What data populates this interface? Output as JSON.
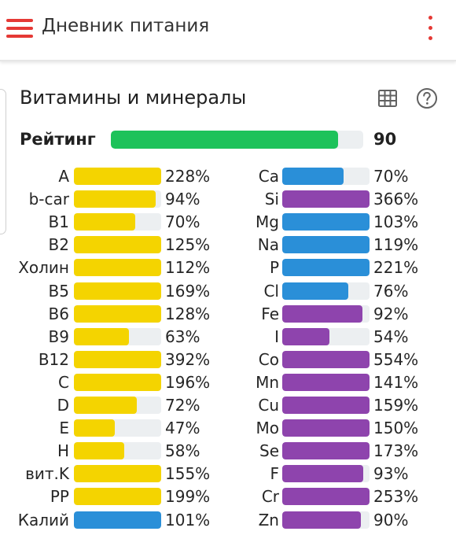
{
  "appbar": {
    "title": "Дневник питания",
    "menu_icon": "menu-icon",
    "more_icon": "more-vert-icon",
    "accent_color": "#e53935"
  },
  "section": {
    "title": "Витамины и минералы",
    "table_icon": "table-icon",
    "help_icon": "help-icon"
  },
  "rating": {
    "label": "Рейтинг",
    "value": "90",
    "fill_percent": 90,
    "color": "#1dc25a"
  },
  "colors": {
    "vitamin": "#f4d400",
    "blue": "#2a8fd8",
    "purple": "#8e44ad",
    "track": "#eceff1"
  },
  "vitamins": [
    {
      "name": "A",
      "percent": "228%",
      "color": "#f4d400"
    },
    {
      "name": "b-car",
      "percent": "94%",
      "color": "#f4d400"
    },
    {
      "name": "B1",
      "percent": "70%",
      "color": "#f4d400"
    },
    {
      "name": "B2",
      "percent": "125%",
      "color": "#f4d400"
    },
    {
      "name": "Холин",
      "percent": "112%",
      "color": "#f4d400"
    },
    {
      "name": "B5",
      "percent": "169%",
      "color": "#f4d400"
    },
    {
      "name": "B6",
      "percent": "128%",
      "color": "#f4d400"
    },
    {
      "name": "B9",
      "percent": "63%",
      "color": "#f4d400"
    },
    {
      "name": "B12",
      "percent": "392%",
      "color": "#f4d400"
    },
    {
      "name": "C",
      "percent": "196%",
      "color": "#f4d400"
    },
    {
      "name": "D",
      "percent": "72%",
      "color": "#f4d400"
    },
    {
      "name": "E",
      "percent": "47%",
      "color": "#f4d400"
    },
    {
      "name": "H",
      "percent": "58%",
      "color": "#f4d400"
    },
    {
      "name": "вит.K",
      "percent": "155%",
      "color": "#f4d400"
    },
    {
      "name": "PP",
      "percent": "199%",
      "color": "#f4d400"
    },
    {
      "name": "Калий",
      "percent": "101%",
      "color": "#2a8fd8"
    }
  ],
  "minerals": [
    {
      "name": "Ca",
      "percent": "70%",
      "color": "#2a8fd8"
    },
    {
      "name": "Si",
      "percent": "366%",
      "color": "#8e44ad"
    },
    {
      "name": "Mg",
      "percent": "103%",
      "color": "#2a8fd8"
    },
    {
      "name": "Na",
      "percent": "119%",
      "color": "#2a8fd8"
    },
    {
      "name": "P",
      "percent": "221%",
      "color": "#2a8fd8"
    },
    {
      "name": "Cl",
      "percent": "76%",
      "color": "#2a8fd8"
    },
    {
      "name": "Fe",
      "percent": "92%",
      "color": "#8e44ad"
    },
    {
      "name": "I",
      "percent": "54%",
      "color": "#8e44ad"
    },
    {
      "name": "Co",
      "percent": "554%",
      "color": "#8e44ad"
    },
    {
      "name": "Mn",
      "percent": "141%",
      "color": "#8e44ad"
    },
    {
      "name": "Cu",
      "percent": "159%",
      "color": "#8e44ad"
    },
    {
      "name": "Mo",
      "percent": "150%",
      "color": "#8e44ad"
    },
    {
      "name": "Se",
      "percent": "173%",
      "color": "#8e44ad"
    },
    {
      "name": "F",
      "percent": "93%",
      "color": "#8e44ad"
    },
    {
      "name": "Cr",
      "percent": "253%",
      "color": "#8e44ad"
    },
    {
      "name": "Zn",
      "percent": "90%",
      "color": "#8e44ad"
    }
  ]
}
